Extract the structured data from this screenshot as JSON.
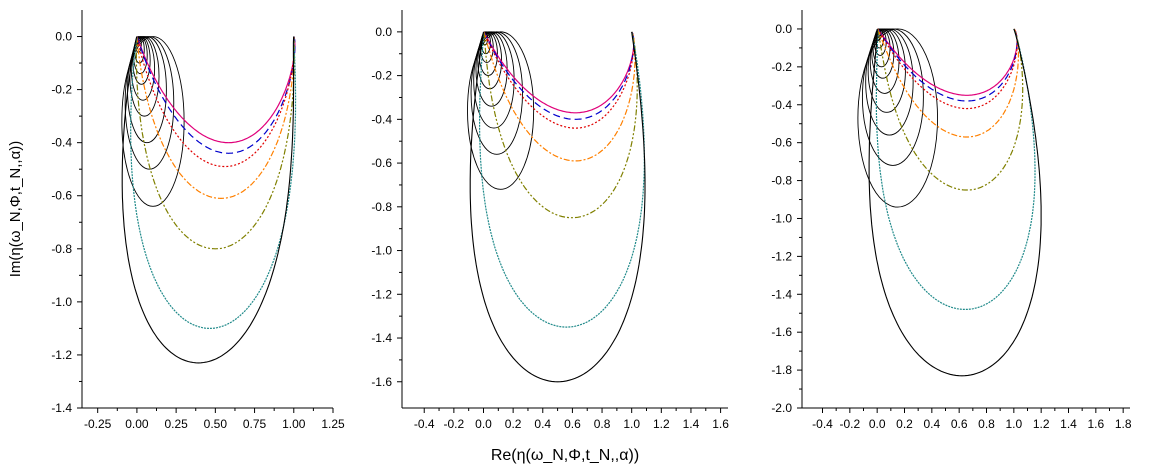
{
  "chart_data": [
    {
      "type": "line",
      "xlabel": "",
      "ylabel": "Im(η(ω_N,Φ,t_N,,α))",
      "xlim": [
        -0.35,
        1.25
      ],
      "ylim": [
        -1.4,
        0.1
      ],
      "xticks": [
        -0.25,
        0.0,
        0.25,
        0.5,
        0.75,
        1.0,
        1.25
      ],
      "xtick_labels": [
        "-0.25",
        "0.00",
        "0.25",
        "0.50",
        "0.75",
        "1.00",
        "1.25"
      ],
      "yticks": [
        0.0,
        -0.2,
        -0.4,
        -0.6,
        -0.8,
        -1.0,
        -1.2,
        -1.4
      ],
      "ytick_labels": [
        "0.0",
        "-0.2",
        "-0.4",
        "-0.6",
        "-0.8",
        "-1.0",
        "-1.2",
        "-1.4"
      ],
      "curves": [
        {
          "color": "#e0007a",
          "dash": "",
          "min_y": -0.4,
          "peak_x": 0.57
        },
        {
          "color": "#0000cc",
          "dash": "7 4",
          "min_y": -0.44,
          "peak_x": 0.57
        },
        {
          "color": "#e00000",
          "dash": "2 2",
          "min_y": -0.49,
          "peak_x": 0.55
        },
        {
          "color": "#ff8000",
          "dash": "6 2 2 2",
          "min_y": -0.61,
          "peak_x": 0.53
        },
        {
          "color": "#808000",
          "dash": "6 2 2 2 2 2",
          "min_y": -0.8,
          "peak_x": 0.5
        },
        {
          "color": "#208a8a",
          "dash": "2 1",
          "min_y": -1.1,
          "peak_x": 0.47
        },
        {
          "color": "#000000",
          "dash": "",
          "min_y": -1.23,
          "peak_x": 0.41
        }
      ],
      "circles_ry": [
        0.03,
        0.05,
        0.07,
        0.09,
        0.12,
        0.15,
        0.2,
        0.25,
        0.32
      ],
      "x_scale": 1.0
    },
    {
      "type": "line",
      "xlabel": "Re(η(ω_N,Φ,t_N,,α))",
      "ylabel": "",
      "xlim": [
        -0.55,
        1.65
      ],
      "ylim": [
        -1.72,
        0.1
      ],
      "xticks": [
        -0.4,
        -0.2,
        0.0,
        0.2,
        0.4,
        0.6,
        0.8,
        1.0,
        1.2,
        1.4,
        1.6
      ],
      "xtick_labels": [
        "-0.4",
        "-0.2",
        "0.0",
        "0.2",
        "0.4",
        "0.6",
        "0.8",
        "1.0",
        "1.2",
        "1.4",
        "1.6"
      ],
      "yticks": [
        0.0,
        -0.2,
        -0.4,
        -0.6,
        -0.8,
        -1.0,
        -1.2,
        -1.4,
        -1.6
      ],
      "ytick_labels": [
        "0.0",
        "-0.2",
        "-0.4",
        "-0.6",
        "-0.8",
        "-1.0",
        "-1.2",
        "-1.4",
        "-1.6"
      ],
      "curves": [
        {
          "color": "#e0007a",
          "dash": "",
          "min_y": -0.37,
          "peak_x": 0.6
        },
        {
          "color": "#0000cc",
          "dash": "7 4",
          "min_y": -0.4,
          "peak_x": 0.6
        },
        {
          "color": "#e00000",
          "dash": "2 2",
          "min_y": -0.44,
          "peak_x": 0.6
        },
        {
          "color": "#ff8000",
          "dash": "6 2 2 2",
          "min_y": -0.59,
          "peak_x": 0.6
        },
        {
          "color": "#808000",
          "dash": "6 2 2 2 2 2",
          "min_y": -0.85,
          "peak_x": 0.58
        },
        {
          "color": "#208a8a",
          "dash": "2 1",
          "min_y": -1.35,
          "peak_x": 0.55
        },
        {
          "color": "#000000",
          "dash": "",
          "min_y": -1.6,
          "peak_x": 0.5
        }
      ],
      "circles_ry": [
        0.03,
        0.05,
        0.07,
        0.1,
        0.13,
        0.17,
        0.22,
        0.28,
        0.36
      ],
      "x_scale": 1.0
    },
    {
      "type": "line",
      "xlabel": "",
      "ylabel": "",
      "xlim": [
        -0.55,
        1.85
      ],
      "ylim": [
        -2.0,
        0.1
      ],
      "xticks": [
        -0.4,
        -0.2,
        0.0,
        0.2,
        0.4,
        0.6,
        0.8,
        1.0,
        1.2,
        1.4,
        1.6,
        1.8
      ],
      "xtick_labels": [
        "-0.4",
        "-0.2",
        "0.0",
        "0.2",
        "0.4",
        "0.6",
        "0.8",
        "1.0",
        "1.2",
        "1.4",
        "1.6",
        "1.8"
      ],
      "yticks": [
        0.0,
        -0.2,
        -0.4,
        -0.6,
        -0.8,
        -1.0,
        -1.2,
        -1.4,
        -1.6,
        -1.8,
        -2.0
      ],
      "ytick_labels": [
        "0.0",
        "-0.2",
        "-0.4",
        "-0.6",
        "-0.8",
        "-1.0",
        "-1.2",
        "-1.4",
        "-1.6",
        "-1.8",
        "-2.0"
      ],
      "curves": [
        {
          "color": "#e0007a",
          "dash": "",
          "min_y": -0.35,
          "peak_x": 0.63
        },
        {
          "color": "#0000cc",
          "dash": "7 4",
          "min_y": -0.38,
          "peak_x": 0.63
        },
        {
          "color": "#e00000",
          "dash": "2 2",
          "min_y": -0.42,
          "peak_x": 0.63
        },
        {
          "color": "#ff8000",
          "dash": "6 2 2 2",
          "min_y": -0.57,
          "peak_x": 0.63
        },
        {
          "color": "#808000",
          "dash": "6 2 2 2 2 2",
          "min_y": -0.85,
          "peak_x": 0.63
        },
        {
          "color": "#208a8a",
          "dash": "2 1",
          "min_y": -1.48,
          "peak_x": 0.62
        },
        {
          "color": "#000000",
          "dash": "",
          "min_y": -1.83,
          "peak_x": 0.6
        }
      ],
      "circles_ry": [
        0.03,
        0.05,
        0.07,
        0.1,
        0.13,
        0.17,
        0.22,
        0.28,
        0.36,
        0.47
      ],
      "x_scale": 1.0
    }
  ]
}
